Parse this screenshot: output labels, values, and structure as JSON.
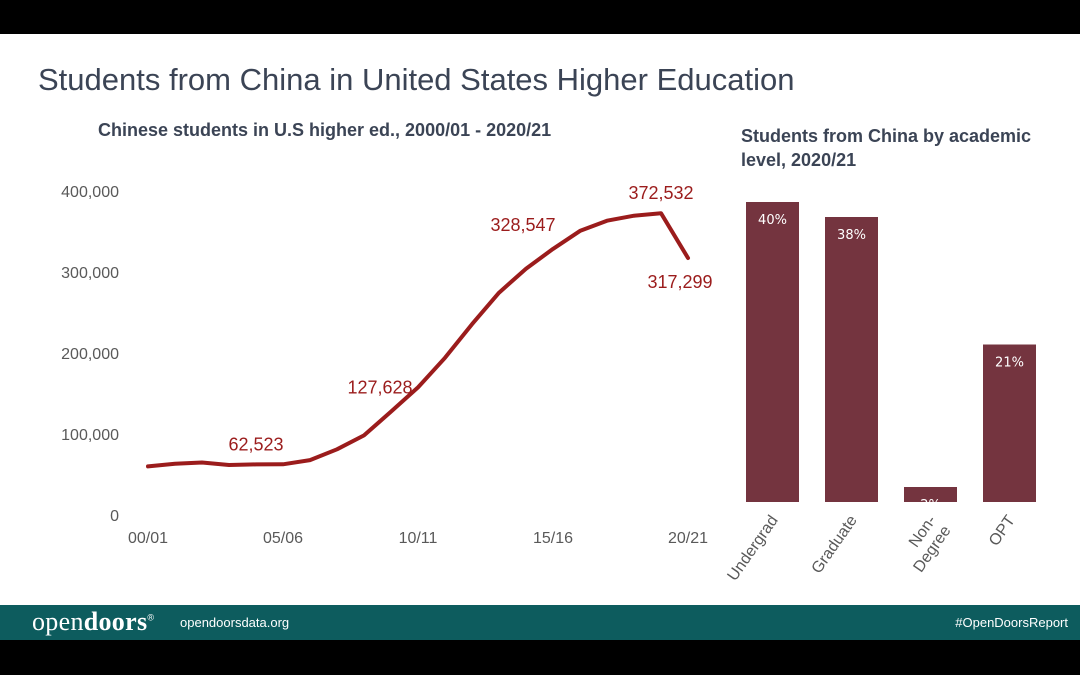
{
  "slide": {
    "title": "Students from China in United States Higher Education"
  },
  "footer": {
    "logo_light": "open",
    "logo_bold": "doors",
    "logo_mark": "®",
    "site": "opendoorsdata.org",
    "hashtag": "#OpenDoorsReport",
    "color": "#0d5c5e"
  },
  "chart_data": [
    {
      "type": "line",
      "title": "Chinese students in U.S higher ed., 2000/01 - 2020/21",
      "color": "#9b1c1c",
      "ylim": [
        0,
        400000
      ],
      "yticks": [
        0,
        100000,
        200000,
        300000,
        400000
      ],
      "ytick_labels": [
        "0",
        "100,000",
        "200,000",
        "300,000",
        "400,000"
      ],
      "xtick_labels": [
        "00/01",
        "05/06",
        "10/11",
        "15/16",
        "20/21"
      ],
      "x": [
        "00/01",
        "01/02",
        "02/03",
        "03/04",
        "04/05",
        "05/06",
        "06/07",
        "07/08",
        "08/09",
        "09/10",
        "10/11",
        "11/12",
        "12/13",
        "13/14",
        "14/15",
        "15/16",
        "16/17",
        "17/18",
        "18/19",
        "19/20",
        "20/21"
      ],
      "values": [
        59939,
        63211,
        64757,
        61765,
        62523,
        62582,
        67723,
        81127,
        98235,
        127628,
        157558,
        194029,
        235597,
        274439,
        304040,
        328547,
        350755,
        363341,
        369548,
        372532,
        317299
      ],
      "data_labels": [
        {
          "index": 4,
          "text": "62,523"
        },
        {
          "index": 9,
          "text": "127,628"
        },
        {
          "index": 15,
          "text": "328,547"
        },
        {
          "index": 19,
          "text": "372,532"
        },
        {
          "index": 20,
          "text": "317,299"
        }
      ],
      "grid": false
    },
    {
      "type": "bar",
      "title": "Students from China by academic level, 2020/21",
      "color": "#74343f",
      "categories": [
        "Undergrad",
        "Graduate",
        "Non-Degree",
        "OPT"
      ],
      "category_lines": [
        [
          "Undergrad"
        ],
        [
          "Graduate"
        ],
        [
          "Non-",
          "Degree"
        ],
        [
          "OPT"
        ]
      ],
      "values": [
        40,
        38,
        2,
        21
      ],
      "value_labels": [
        "40%",
        "38%",
        "2%",
        "21%"
      ],
      "unit": "%",
      "grid": false
    }
  ]
}
